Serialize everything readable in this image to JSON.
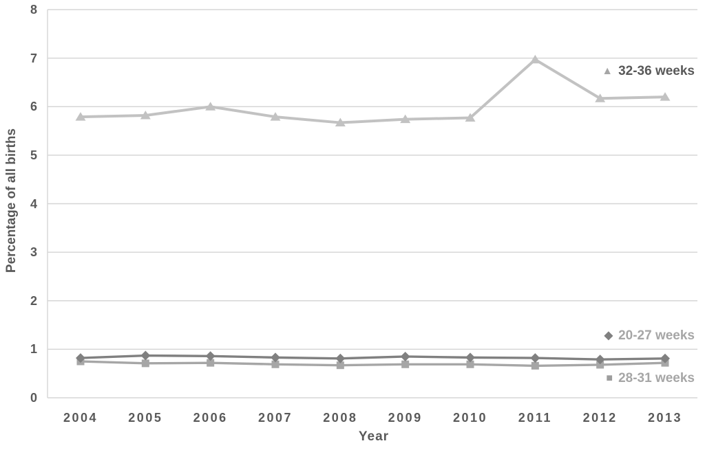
{
  "colors": {
    "background": "#ffffff",
    "grid": "#d6d6d6",
    "axis_text": "#595959",
    "muted_text": "#a6a6a6",
    "series_32_36": "#c2c2c2",
    "series_28_31": "#a6a6a6",
    "series_20_27": "#808080"
  },
  "annotations": [
    {
      "glyph": "▲",
      "glyph_color": "#a6a6a6",
      "text": "32-36 weeks",
      "text_color": "#595959"
    },
    {
      "glyph": "◆",
      "glyph_color": "#808080",
      "text": "20-27 weeks",
      "text_color": "#a6a6a6"
    },
    {
      "glyph": "■",
      "glyph_color": "#9d9d9d",
      "text": "28-31 weeks",
      "text_color": "#a6a6a6"
    }
  ],
  "chart_data": {
    "type": "line",
    "title": "",
    "xlabel": "Year",
    "ylabel": "Percentage of all births",
    "categories": [
      "2004",
      "2005",
      "2006",
      "2007",
      "2008",
      "2009",
      "2010",
      "2011",
      "2012",
      "2013"
    ],
    "ylim": [
      0,
      8
    ],
    "yticks": [
      0,
      1,
      2,
      3,
      4,
      5,
      6,
      7,
      8
    ],
    "grid": "horizontal",
    "legend_position": "inline-right-annotations",
    "series": [
      {
        "name": "32-36 weeks",
        "marker": "triangle",
        "color": "#c2c2c2",
        "values": [
          5.79,
          5.82,
          6.0,
          5.79,
          5.67,
          5.74,
          5.77,
          6.97,
          6.17,
          6.2
        ]
      },
      {
        "name": "28-31 weeks",
        "marker": "square",
        "color": "#a6a6a6",
        "values": [
          0.75,
          0.71,
          0.72,
          0.69,
          0.67,
          0.69,
          0.69,
          0.66,
          0.68,
          0.72
        ]
      },
      {
        "name": "20-27 weeks",
        "marker": "diamond",
        "color": "#808080",
        "values": [
          0.82,
          0.87,
          0.86,
          0.83,
          0.81,
          0.85,
          0.83,
          0.82,
          0.79,
          0.81
        ]
      }
    ]
  }
}
